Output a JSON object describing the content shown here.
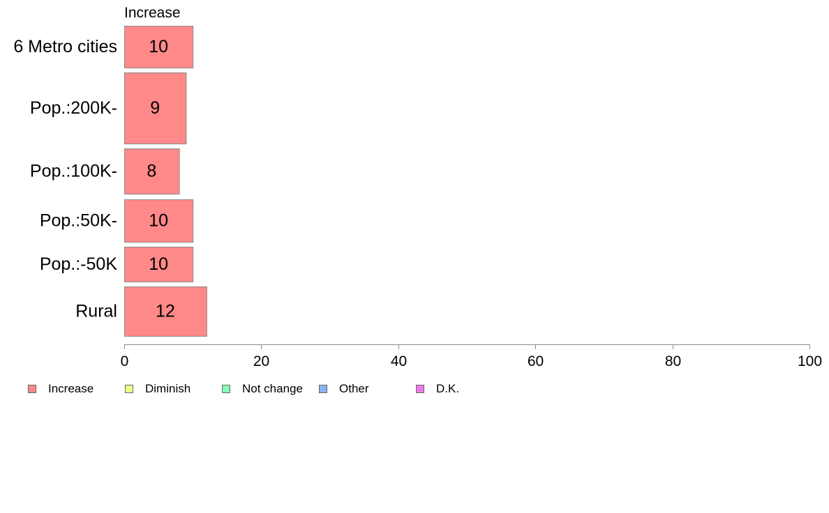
{
  "chart_data": {
    "type": "bar",
    "orientation": "horizontal",
    "title": "",
    "series_heading": "Increase",
    "categories": [
      "6 Metro cities",
      "Pop.:200K-",
      "Pop.:100K-",
      "Pop.:50K-",
      "Pop.:-50K",
      "Rural"
    ],
    "series": [
      {
        "name": "Increase",
        "values": [
          10,
          9,
          8,
          10,
          10,
          12
        ]
      }
    ],
    "data_labels": [
      "10",
      "9",
      "8",
      "10",
      "10",
      "12"
    ],
    "xlim": [
      0,
      100
    ],
    "x_ticks": [
      "0",
      "20",
      "40",
      "60",
      "80",
      "100"
    ],
    "xlabel": "",
    "ylabel": "",
    "grid": false,
    "legend_position": "bottom-left",
    "legend": [
      {
        "label": "Increase",
        "color": "#FF8888"
      },
      {
        "label": "Diminish",
        "color": "#EEFF88"
      },
      {
        "label": "Not change",
        "color": "#88FFBB"
      },
      {
        "label": "Other",
        "color": "#88B4F2"
      },
      {
        "label": "D.K.",
        "color": "#EE77EE"
      }
    ],
    "bar_color": "#FF8888",
    "bar_stroke": "#8a8a8a",
    "axis_color": "#8a8a8a"
  }
}
